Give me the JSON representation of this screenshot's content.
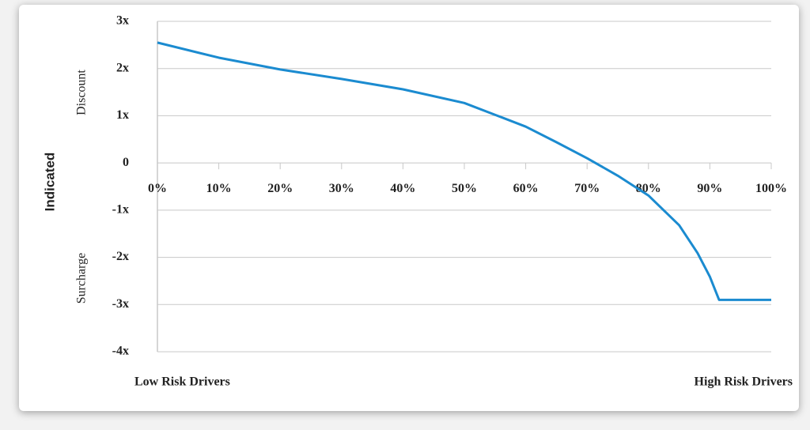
{
  "chart_data": {
    "type": "line",
    "y_label": "Indicated",
    "y_upper_label": "Discount",
    "y_lower_label": "Surcharge",
    "x_left_label": "Low Risk Drivers",
    "x_right_label": "High Risk Drivers",
    "x": [
      0,
      10,
      20,
      30,
      40,
      50,
      55,
      60,
      65,
      70,
      75,
      80,
      85,
      88,
      90,
      91.5,
      100
    ],
    "values": [
      2.55,
      2.23,
      1.98,
      1.78,
      1.56,
      1.27,
      1.02,
      0.77,
      0.44,
      0.1,
      -0.27,
      -0.69,
      -1.32,
      -1.91,
      -2.41,
      -2.9,
      -2.9
    ],
    "color": "#1b8bd0",
    "xlim": [
      0,
      100
    ],
    "xticks": [
      {
        "value": 0,
        "label": "0%"
      },
      {
        "value": 10,
        "label": "10%"
      },
      {
        "value": 20,
        "label": "20%"
      },
      {
        "value": 30,
        "label": "30%"
      },
      {
        "value": 40,
        "label": "40%"
      },
      {
        "value": 50,
        "label": "50%"
      },
      {
        "value": 60,
        "label": "60%"
      },
      {
        "value": 70,
        "label": "70%"
      },
      {
        "value": 80,
        "label": "80%"
      },
      {
        "value": 90,
        "label": "90%"
      },
      {
        "value": 100,
        "label": "100%"
      }
    ],
    "ylim": [
      -4,
      3
    ],
    "yticks": [
      {
        "value": 3,
        "label": "3x"
      },
      {
        "value": 2,
        "label": "2x"
      },
      {
        "value": 1,
        "label": "1x"
      },
      0,
      {
        "value": -1,
        "label": "-1x"
      },
      {
        "value": -2,
        "label": "-2x"
      },
      {
        "value": -3,
        "label": "-3x"
      },
      {
        "value": -4,
        "label": "-4x"
      }
    ],
    "grid": true
  }
}
